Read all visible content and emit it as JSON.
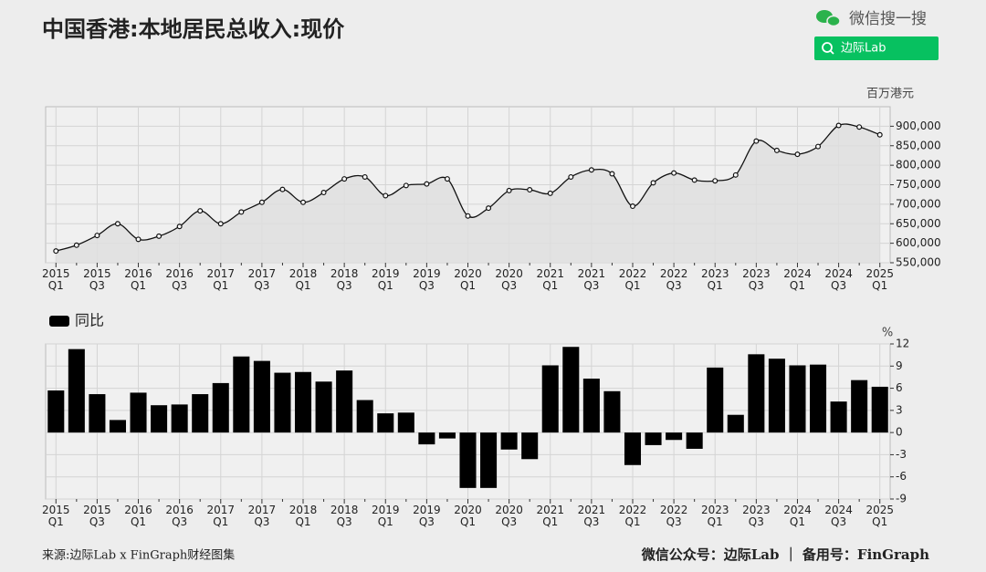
{
  "header": {
    "brand": "微信搜一搜",
    "search": "边际Lab"
  },
  "chart_data": [
    {
      "type": "line",
      "title": "中国香港:本地居民总收入:现价",
      "y_label": "百万港元",
      "categories": [
        "2015 Q1",
        null,
        "2015 Q3",
        null,
        "2016 Q1",
        null,
        "2016 Q3",
        null,
        "2017 Q1",
        null,
        "2017 Q3",
        null,
        "2018 Q1",
        null,
        "2018 Q3",
        null,
        "2019 Q1",
        null,
        "2019 Q3",
        null,
        "2020 Q1",
        null,
        "2020 Q3",
        null,
        "2021 Q1",
        null,
        "2021 Q3",
        null,
        "2022 Q1",
        null,
        "2022 Q3",
        null,
        "2023 Q1",
        null,
        "2023 Q3",
        null,
        "2024 Q1",
        null,
        "2024 Q3",
        null,
        "2025 Q1"
      ],
      "series": [
        {
          "color": "#111111",
          "fill": "#dedede",
          "values": [
            580000,
            595000,
            620000,
            650000,
            610000,
            618000,
            643000,
            683000,
            650000,
            680000,
            705000,
            738000,
            705000,
            730000,
            765000,
            770000,
            722000,
            748000,
            752000,
            765000,
            670000,
            690000,
            735000,
            737000,
            728000,
            770000,
            788000,
            778000,
            695000,
            755000,
            780000,
            762000,
            760000,
            775000,
            862000,
            838000,
            828000,
            848000,
            902000,
            898000,
            878000
          ]
        }
      ],
      "ylim": [
        550000,
        950000
      ],
      "yticks": [
        {
          "value": 550000,
          "label": "550,000"
        },
        {
          "value": 600000,
          "label": "600,000"
        },
        {
          "value": 650000,
          "label": "650,000"
        },
        {
          "value": 700000,
          "label": "700,000"
        },
        {
          "value": 750000,
          "label": "750,000"
        },
        {
          "value": 800000,
          "label": "800,000"
        },
        {
          "value": 850000,
          "label": "850,000"
        },
        {
          "value": 900000,
          "label": "900,000"
        }
      ],
      "grid": true
    },
    {
      "type": "bar",
      "y_label": "%",
      "legend": "upper left",
      "categories": [
        "2015 Q1",
        null,
        "2015 Q3",
        null,
        "2016 Q1",
        null,
        "2016 Q3",
        null,
        "2017 Q1",
        null,
        "2017 Q3",
        null,
        "2018 Q1",
        null,
        "2018 Q3",
        null,
        "2019 Q1",
        null,
        "2019 Q3",
        null,
        "2020 Q1",
        null,
        "2020 Q3",
        null,
        "2021 Q1",
        null,
        "2021 Q3",
        null,
        "2022 Q1",
        null,
        "2022 Q3",
        null,
        "2023 Q1",
        null,
        "2023 Q3",
        null,
        "2024 Q1",
        null,
        "2024 Q3",
        null,
        "2025 Q1"
      ],
      "series": [
        {
          "name": "同比",
          "color": "#000000",
          "values": [
            5.7,
            11.3,
            5.2,
            1.7,
            5.4,
            3.7,
            3.8,
            5.2,
            6.7,
            10.3,
            9.7,
            8.1,
            8.2,
            6.9,
            8.4,
            4.4,
            2.6,
            2.7,
            -1.6,
            -0.8,
            -7.5,
            -7.5,
            -2.3,
            -3.6,
            9.1,
            11.6,
            7.3,
            5.6,
            -4.4,
            -1.7,
            -1.0,
            -2.2,
            8.8,
            2.4,
            10.6,
            10.0,
            9.1,
            9.2,
            4.2,
            7.1,
            6.2
          ]
        }
      ],
      "ylim": [
        -9,
        12
      ],
      "yticks": [
        -9,
        -6,
        -3,
        0,
        3,
        6,
        9,
        12
      ],
      "grid": true
    }
  ],
  "footer": {
    "source": "来源:边际Lab x FinGraph财经图集",
    "credit": "微信公众号：边际Lab ｜ 备用号：FinGraph"
  }
}
